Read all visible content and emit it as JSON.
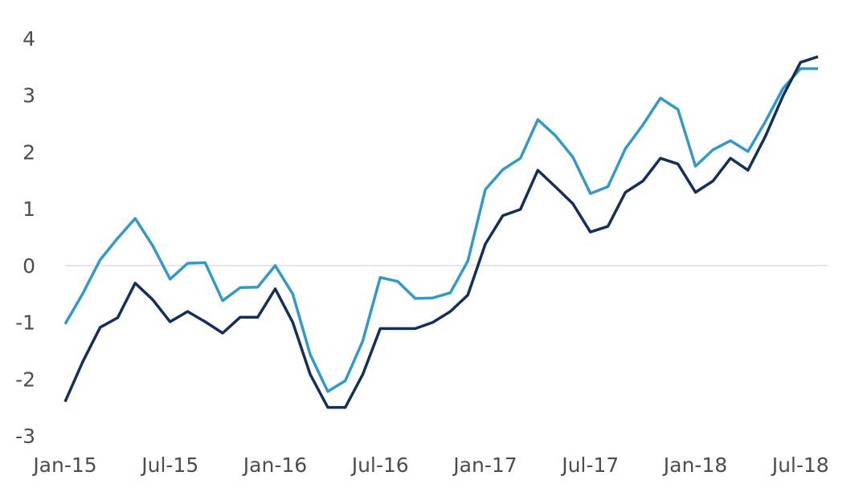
{
  "chart_data": {
    "type": "line",
    "title": "",
    "xlabel": "",
    "ylabel": "",
    "ylim": [
      -3,
      4
    ],
    "yticks": [
      "4",
      "3",
      "2",
      "1",
      "0",
      "-1",
      "-2",
      "-3"
    ],
    "x_tick_labels": [
      "Jan-15",
      "Jul-15",
      "Jan-16",
      "Jul-16",
      "Jan-17",
      "Jul-17",
      "Jan-18",
      "Jul-18"
    ],
    "x": [
      "Jan-15",
      "Feb-15",
      "Mar-15",
      "Apr-15",
      "May-15",
      "Jun-15",
      "Jul-15",
      "Aug-15",
      "Sep-15",
      "Oct-15",
      "Nov-15",
      "Dec-15",
      "Jan-16",
      "Feb-16",
      "Mar-16",
      "Apr-16",
      "May-16",
      "Jun-16",
      "Jul-16",
      "Aug-16",
      "Sep-16",
      "Oct-16",
      "Nov-16",
      "Dec-16",
      "Jan-17",
      "Feb-17",
      "Mar-17",
      "Apr-17",
      "May-17",
      "Jun-17",
      "Jul-17",
      "Aug-17",
      "Sep-17",
      "Oct-17",
      "Nov-17",
      "Dec-17",
      "Jan-18",
      "Feb-18",
      "Mar-18",
      "Apr-18",
      "May-18",
      "Jun-18",
      "Jul-18",
      "Aug-18"
    ],
    "grid": false,
    "zero_line": true,
    "legend": "none",
    "series": [
      {
        "color": "#3399c9",
        "values": [
          -1.03,
          -0.5,
          0.1,
          0.48,
          0.83,
          0.35,
          -0.24,
          0.04,
          0.05,
          -0.62,
          -0.39,
          -0.38,
          0.0,
          -0.5,
          -1.57,
          -2.22,
          -2.03,
          -1.33,
          -0.21,
          -0.28,
          -0.58,
          -0.57,
          -0.48,
          0.08,
          1.34,
          1.69,
          1.89,
          2.57,
          2.29,
          1.91,
          1.27,
          1.39,
          2.06,
          2.48,
          2.95,
          2.75,
          1.75,
          2.04,
          2.2,
          2.01,
          2.54,
          3.12,
          3.47,
          3.47
        ]
      },
      {
        "color": "#13305a",
        "values": [
          -2.4,
          -1.7,
          -1.09,
          -0.92,
          -0.31,
          -0.6,
          -0.99,
          -0.81,
          -0.99,
          -1.19,
          -0.91,
          -0.91,
          -0.41,
          -1.0,
          -1.92,
          -2.5,
          -2.5,
          -1.92,
          -1.11,
          -1.11,
          -1.11,
          -1.0,
          -0.81,
          -0.52,
          0.38,
          0.88,
          0.99,
          1.68,
          1.39,
          1.09,
          0.59,
          0.69,
          1.29,
          1.49,
          1.89,
          1.79,
          1.29,
          1.49,
          1.89,
          1.68,
          2.28,
          2.99,
          3.58,
          3.68
        ]
      }
    ]
  }
}
